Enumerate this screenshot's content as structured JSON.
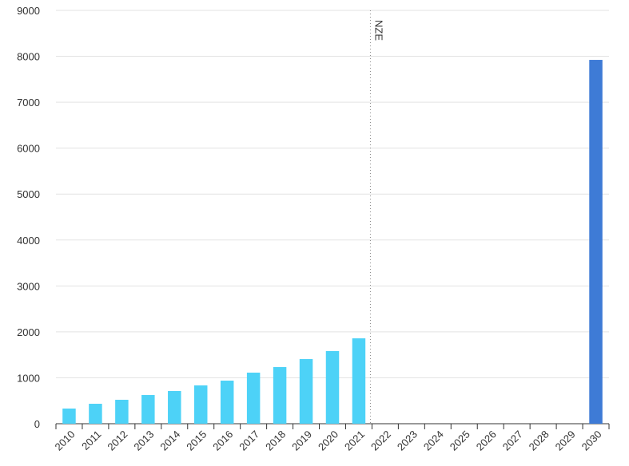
{
  "chart_data": {
    "type": "bar",
    "categories": [
      "2010",
      "2011",
      "2012",
      "2013",
      "2014",
      "2015",
      "2016",
      "2017",
      "2018",
      "2019",
      "2020",
      "2021",
      "2022",
      "2023",
      "2024",
      "2025",
      "2026",
      "2027",
      "2028",
      "2029",
      "2030"
    ],
    "values": [
      330,
      434,
      521,
      625,
      712,
      834,
      938,
      1112,
      1233,
      1407,
      1581,
      1859,
      null,
      null,
      null,
      null,
      null,
      null,
      null,
      null,
      7922
    ],
    "colors": [
      "#4dd2f7",
      "#4dd2f7",
      "#4dd2f7",
      "#4dd2f7",
      "#4dd2f7",
      "#4dd2f7",
      "#4dd2f7",
      "#4dd2f7",
      "#4dd2f7",
      "#4dd2f7",
      "#4dd2f7",
      "#4dd2f7",
      null,
      null,
      null,
      null,
      null,
      null,
      null,
      null,
      "#3e7bd6"
    ],
    "ylim": [
      0,
      9000
    ],
    "yticks": [
      0,
      1000,
      2000,
      3000,
      4000,
      5000,
      6000,
      7000,
      8000,
      9000
    ],
    "grid": true,
    "annotations": [
      {
        "text": "NZE",
        "category": "2022"
      }
    ]
  }
}
